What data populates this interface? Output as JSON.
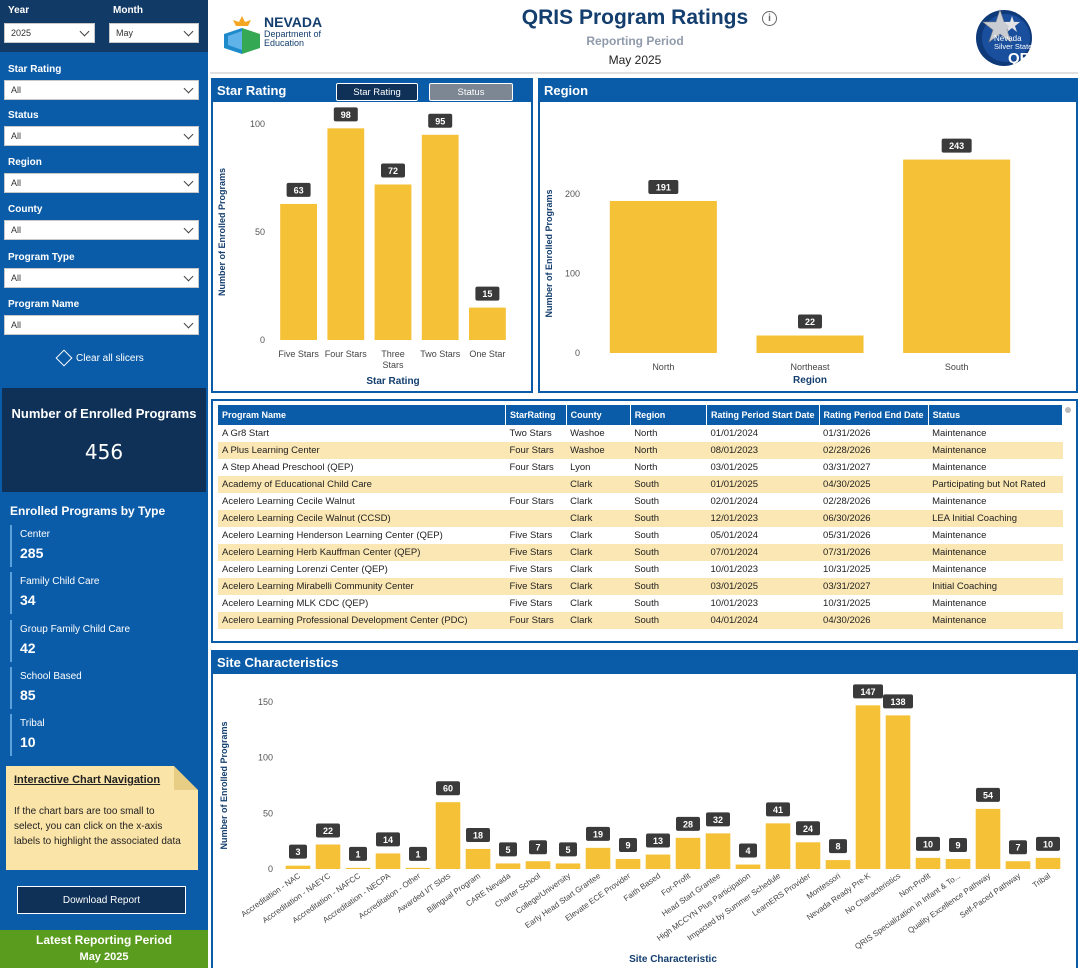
{
  "filters": {
    "year": {
      "label": "Year",
      "value": "2025"
    },
    "month": {
      "label": "Month",
      "value": "May"
    },
    "star_rating": {
      "label": "Star Rating",
      "value": "All"
    },
    "status": {
      "label": "Status",
      "value": "All"
    },
    "region": {
      "label": "Region",
      "value": "All"
    },
    "county": {
      "label": "County",
      "value": "All"
    },
    "program_type": {
      "label": "Program Type",
      "value": "All"
    },
    "program_name": {
      "label": "Program Name",
      "value": "All"
    },
    "clear_label": "Clear all slicers"
  },
  "enrolled": {
    "title": "Number of Enrolled Programs",
    "value": "456"
  },
  "by_type": {
    "title": "Enrolled Programs by Type",
    "items": [
      {
        "name": "Center",
        "value": "285"
      },
      {
        "name": "Family Child Care",
        "value": "34"
      },
      {
        "name": "Group Family Child Care",
        "value": "42"
      },
      {
        "name": "School Based",
        "value": "85"
      },
      {
        "name": "Tribal",
        "value": "10"
      }
    ]
  },
  "note": {
    "title": "Interactive Chart Navigation",
    "text": "If the chart bars are too small to select, you can click on the x-axis labels to highlight the associated data"
  },
  "download_label": "Download Report",
  "latest": {
    "title": "Latest Reporting Period",
    "value": "May 2025"
  },
  "header": {
    "logo_line1": "NEVADA",
    "logo_line2": "Department of",
    "logo_line3": "Education",
    "title": "QRIS Program Ratings",
    "subtitle": "Reporting Period",
    "period": "May 2025",
    "qris_line1": "Nevada",
    "qris_line2": "Silver State Stars",
    "qris_line3": "QRIS"
  },
  "star_panel": {
    "title": "Star Rating",
    "toggle_active": "Star Rating",
    "toggle_inactive": "Status"
  },
  "region_panel": {
    "title": "Region"
  },
  "site_panel": {
    "title": "Site Characteristics"
  },
  "colors": {
    "accent": "#0b5ca8",
    "navy": "#0f3157",
    "bar": "#f5c137",
    "row_alt": "#fbe7b3",
    "green": "#5a9c1e"
  },
  "chart_data": [
    {
      "type": "bar",
      "title": "Star Rating",
      "xlabel": "Star Rating",
      "ylabel": "Number of Enrolled Programs",
      "categories": [
        "Five Stars",
        "Four Stars",
        "Three Stars",
        "Two Stars",
        "One Star"
      ],
      "values": [
        63,
        98,
        72,
        95,
        15
      ],
      "yticks": [
        0,
        50,
        100
      ],
      "ylim": [
        0,
        100
      ]
    },
    {
      "type": "bar",
      "title": "Region",
      "xlabel": "Region",
      "ylabel": "Number of Enrolled Programs",
      "categories": [
        "North",
        "Northeast",
        "South"
      ],
      "values": [
        191,
        22,
        243
      ],
      "yticks": [
        0,
        100,
        200
      ],
      "ylim": [
        0,
        250
      ]
    },
    {
      "type": "bar",
      "title": "Site Characteristics",
      "xlabel": "Site Characteristic",
      "ylabel": "Number of Enrolled Programs",
      "categories": [
        "Accreditation - NAC",
        "Accreditation - NAEYC",
        "Accreditation - NAFCC",
        "Accreditation - NECPA",
        "Accreditation - Other",
        "Awarded I/T Slots",
        "Bilingual Program",
        "CARE Nevada",
        "Charter School",
        "College/University",
        "Early Head Start Grantee",
        "Elevate ECE Provider",
        "Faith Based",
        "For-Profit",
        "Head Start Grantee",
        "High MCCYN Plus Participation",
        "Impacted by Summer Schedule",
        "LearnERS Provider",
        "Montessori",
        "Nevada Ready Pre-K",
        "No Characteristics",
        "Non-Profit",
        "QRIS Specialization in Infant & To...",
        "Quality Excellence Pathway",
        "Self-Paced Pathway",
        "Tribal"
      ],
      "values": [
        3,
        22,
        1,
        14,
        1,
        60,
        18,
        5,
        7,
        5,
        19,
        9,
        13,
        28,
        32,
        4,
        41,
        24,
        8,
        147,
        138,
        10,
        9,
        54,
        7,
        10
      ],
      "yticks": [
        0,
        50,
        100,
        150
      ],
      "ylim": [
        0,
        150
      ]
    }
  ],
  "table": {
    "columns": [
      "Program Name",
      "StarRating",
      "County",
      "Region",
      "Rating Period Start Date",
      "Rating Period End Date",
      "Status"
    ],
    "rows": [
      [
        "A Gr8 Start",
        "Two Stars",
        "Washoe",
        "North",
        "01/01/2024",
        "01/31/2026",
        "Maintenance"
      ],
      [
        "A Plus Learning Center",
        "Four Stars",
        "Washoe",
        "North",
        "08/01/2023",
        "02/28/2026",
        "Maintenance"
      ],
      [
        "A Step Ahead Preschool (QEP)",
        "Four Stars",
        "Lyon",
        "North",
        "03/01/2025",
        "03/31/2027",
        "Maintenance"
      ],
      [
        "Academy of Educational Child Care",
        "",
        "Clark",
        "South",
        "01/01/2025",
        "04/30/2025",
        "Participating but Not Rated"
      ],
      [
        "Acelero Learning Cecile Walnut",
        "Four Stars",
        "Clark",
        "South",
        "02/01/2024",
        "02/28/2026",
        "Maintenance"
      ],
      [
        "Acelero Learning Cecile Walnut (CCSD)",
        "",
        "Clark",
        "South",
        "12/01/2023",
        "06/30/2026",
        "LEA Initial Coaching"
      ],
      [
        "Acelero Learning Henderson Learning Center (QEP)",
        "Five Stars",
        "Clark",
        "South",
        "05/01/2024",
        "05/31/2026",
        "Maintenance"
      ],
      [
        "Acelero Learning Herb Kauffman Center (QEP)",
        "Five Stars",
        "Clark",
        "South",
        "07/01/2024",
        "07/31/2026",
        "Maintenance"
      ],
      [
        "Acelero Learning Lorenzi Center (QEP)",
        "Five Stars",
        "Clark",
        "South",
        "10/01/2023",
        "10/31/2025",
        "Maintenance"
      ],
      [
        "Acelero Learning Mirabelli Community Center",
        "Five Stars",
        "Clark",
        "South",
        "03/01/2025",
        "03/31/2027",
        "Initial Coaching"
      ],
      [
        "Acelero Learning MLK CDC (QEP)",
        "Five Stars",
        "Clark",
        "South",
        "10/01/2023",
        "10/31/2025",
        "Maintenance"
      ],
      [
        "Acelero Learning Professional Development Center (PDC)",
        "Four Stars",
        "Clark",
        "South",
        "04/01/2024",
        "04/30/2026",
        "Maintenance"
      ]
    ]
  }
}
